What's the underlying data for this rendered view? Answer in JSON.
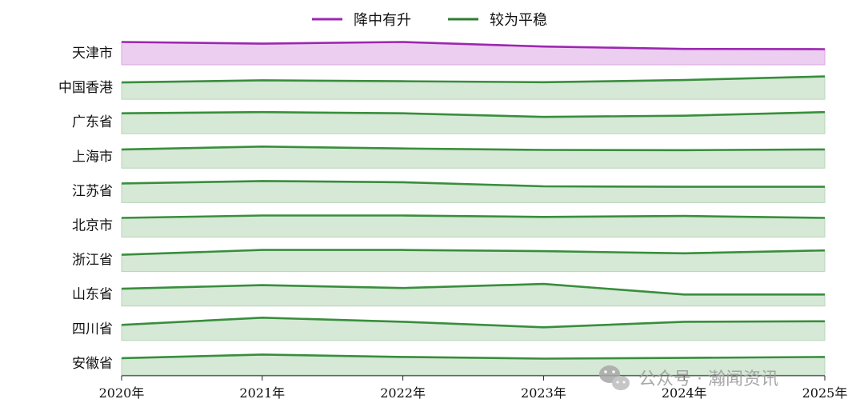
{
  "chart_data": {
    "type": "area",
    "title": "",
    "xlabel": "",
    "ylabel": "",
    "x": [
      "2020年",
      "2021年",
      "2022年",
      "2023年",
      "2024年",
      "2025年"
    ],
    "legend": {
      "placement": "top-center",
      "entries": [
        {
          "label": "降中有升",
          "color": "#9c27b0"
        },
        {
          "label": "较为平稳",
          "color": "#2e7d32"
        }
      ]
    },
    "rows": [
      {
        "name": "天津市",
        "group": "降中有升",
        "values": [
          0.95,
          0.88,
          0.95,
          0.76,
          0.66,
          0.65
        ]
      },
      {
        "name": "中国香港",
        "group": "较为平稳",
        "values": [
          0.7,
          0.79,
          0.75,
          0.71,
          0.8,
          0.95
        ]
      },
      {
        "name": "广东省",
        "group": "较为平稳",
        "values": [
          0.85,
          0.9,
          0.85,
          0.7,
          0.75,
          0.9
        ]
      },
      {
        "name": "上海市",
        "group": "较为平稳",
        "values": [
          0.78,
          0.9,
          0.82,
          0.76,
          0.75,
          0.78
        ]
      },
      {
        "name": "江苏省",
        "group": "较为平稳",
        "values": [
          0.8,
          0.9,
          0.85,
          0.68,
          0.66,
          0.66
        ]
      },
      {
        "name": "北京市",
        "group": "较为平稳",
        "values": [
          0.8,
          0.9,
          0.9,
          0.84,
          0.88,
          0.8
        ]
      },
      {
        "name": "浙江省",
        "group": "较为平稳",
        "values": [
          0.7,
          0.9,
          0.9,
          0.85,
          0.76,
          0.88
        ]
      },
      {
        "name": "山东省",
        "group": "较为平稳",
        "values": [
          0.72,
          0.87,
          0.75,
          0.92,
          0.48,
          0.48
        ]
      },
      {
        "name": "四川省",
        "group": "较为平稳",
        "values": [
          0.65,
          0.95,
          0.78,
          0.55,
          0.78,
          0.8
        ]
      },
      {
        "name": "安徽省",
        "group": "较为平稳",
        "values": [
          0.7,
          0.85,
          0.75,
          0.68,
          0.71,
          0.75
        ]
      }
    ],
    "styles": {
      "降中有升": {
        "line": "#9c27b0",
        "fill": "#eccef0",
        "fill_edge": "#d9a6e0"
      },
      "较为平稳": {
        "line": "#388e3c",
        "fill": "#d6e8d6",
        "fill_edge": "#b7d6b8"
      }
    }
  },
  "watermark": {
    "text": "公众号 · 瀚闻资讯",
    "icon": "wechat-icon"
  }
}
